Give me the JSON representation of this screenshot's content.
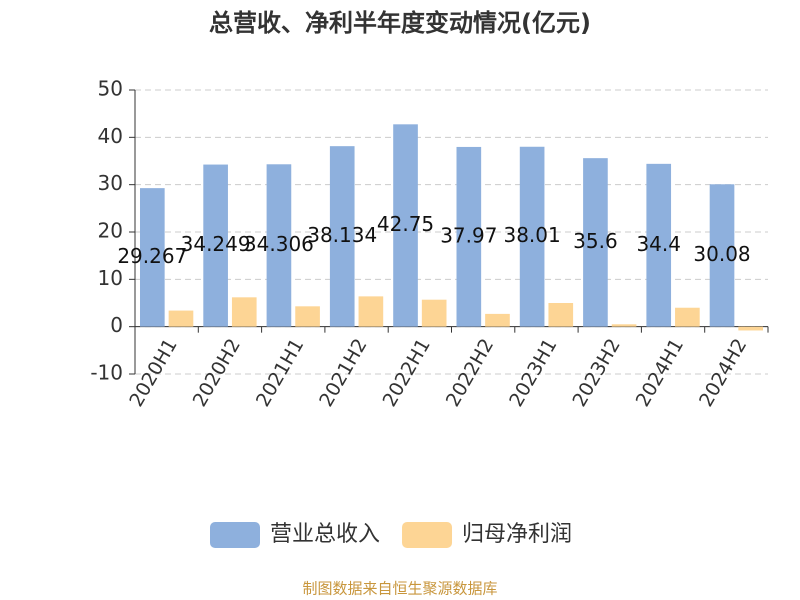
{
  "chart_data": {
    "type": "bar",
    "title": "总营收、净利半年度变动情况(亿元)",
    "categories": [
      "2020H1",
      "2020H2",
      "2021H1",
      "2021H2",
      "2022H1",
      "2022H2",
      "2023H1",
      "2023H2",
      "2024H1",
      "2024H2"
    ],
    "series": [
      {
        "name": "营业总收入",
        "color": "#8eb0dd",
        "values": [
          29.267,
          34.249,
          34.306,
          38.134,
          42.75,
          37.97,
          38.01,
          35.6,
          34.4,
          30.08
        ],
        "show_labels": true
      },
      {
        "name": "归母净利润",
        "color": "#fdd595",
        "values": [
          3.4,
          6.2,
          4.3,
          6.4,
          5.7,
          2.7,
          5.0,
          0.5,
          4.0,
          -0.8
        ]
      }
    ],
    "ylim": [
      -10,
      50
    ],
    "yticks": [
      -10,
      0,
      10,
      20,
      30,
      40,
      50
    ],
    "grid": true,
    "legend": "bottom",
    "source": "制图数据来自恒生聚源数据库"
  }
}
